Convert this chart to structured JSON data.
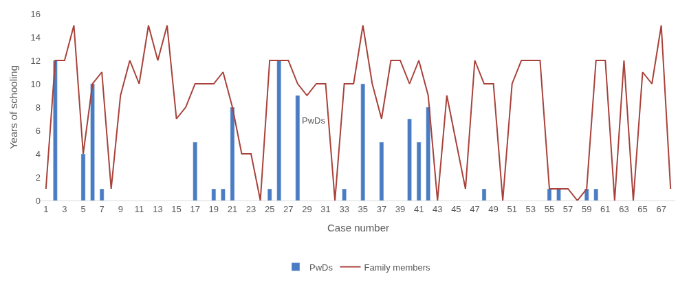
{
  "chart_data": {
    "type": "bar",
    "xlabel": "Case number",
    "ylabel": "Years of schooling",
    "x": [
      1,
      2,
      3,
      4,
      5,
      6,
      7,
      8,
      9,
      10,
      11,
      12,
      13,
      14,
      15,
      16,
      17,
      18,
      19,
      20,
      21,
      22,
      23,
      24,
      25,
      26,
      27,
      28,
      29,
      30,
      31,
      32,
      33,
      34,
      35,
      36,
      37,
      38,
      39,
      40,
      41,
      42,
      43,
      44,
      45,
      46,
      47,
      48,
      49,
      50,
      51,
      52,
      53,
      54,
      55,
      56,
      57,
      58,
      59,
      60,
      61,
      62,
      63,
      64,
      65,
      66,
      67,
      68
    ],
    "series": [
      {
        "name": "PwDs",
        "color": "#4a7cc4",
        "values": [
          null,
          12,
          null,
          null,
          4,
          10,
          1,
          null,
          null,
          null,
          null,
          null,
          null,
          null,
          null,
          null,
          5,
          null,
          1,
          1,
          8,
          null,
          null,
          null,
          1,
          12,
          null,
          9,
          null,
          null,
          null,
          null,
          1,
          null,
          10,
          null,
          5,
          null,
          null,
          7,
          5,
          8,
          null,
          null,
          null,
          null,
          null,
          1,
          null,
          null,
          null,
          null,
          null,
          null,
          1,
          1,
          null,
          null,
          1,
          1,
          null,
          null,
          null,
          null,
          null,
          null,
          null,
          null
        ]
      },
      {
        "name": "Family members",
        "type": "line",
        "color": "#a8413a",
        "values": [
          1,
          12,
          12,
          15,
          4,
          10,
          11,
          1,
          9,
          12,
          10,
          15,
          12,
          15,
          7,
          8,
          10,
          10,
          10,
          11,
          8,
          4,
          4,
          0,
          12,
          12,
          12,
          10,
          9,
          10,
          10,
          0,
          10,
          10,
          15,
          10,
          7,
          12,
          12,
          10,
          12,
          9,
          0,
          9,
          5,
          1,
          12,
          10,
          10,
          0,
          10,
          12,
          12,
          12,
          1,
          1,
          1,
          0,
          1,
          12,
          12,
          0,
          12,
          0,
          11,
          10,
          15,
          1
        ]
      }
    ],
    "xlim": [
      0.5,
      68.5
    ],
    "xticks": [
      1,
      3,
      5,
      7,
      9,
      11,
      13,
      15,
      17,
      19,
      21,
      23,
      25,
      27,
      29,
      31,
      33,
      35,
      37,
      39,
      41,
      43,
      45,
      47,
      49,
      51,
      53,
      55,
      57,
      59,
      61,
      63,
      65,
      67
    ],
    "ylim": [
      0,
      16
    ],
    "yticks": [
      0,
      2,
      4,
      6,
      8,
      10,
      12,
      14,
      16
    ],
    "annotations": [
      "PwDs"
    ],
    "grid": false,
    "legend": "bottom"
  }
}
